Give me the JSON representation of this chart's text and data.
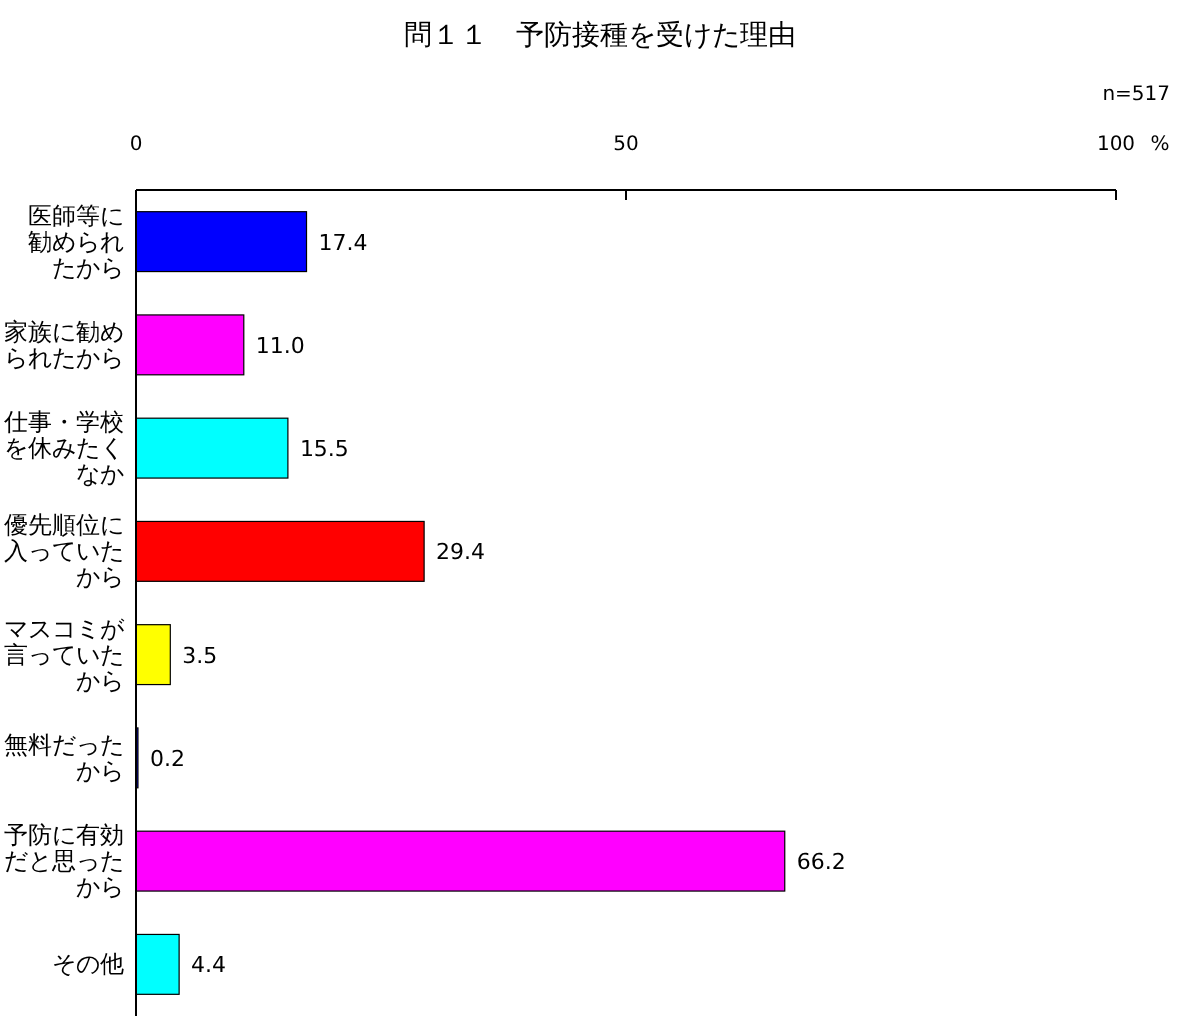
{
  "chart_data": {
    "type": "bar",
    "orientation": "horizontal",
    "title": "問１１　予防接種を受けた理由",
    "annotations": [
      "n=517"
    ],
    "xlabel": "%",
    "categories": [
      "医師等に勧められたから",
      "家族に勧められたから",
      "仕事・学校を休みたくなか",
      "優先順位に入っていたから",
      "マスコミが言っていたから",
      "無料だったから",
      "予防に有効だと思ったから",
      "その他"
    ],
    "values": [
      17.4,
      11.0,
      15.5,
      29.4,
      3.5,
      0.2,
      66.2,
      4.4
    ],
    "value_labels": [
      "17.4",
      "11.0",
      "15.5",
      "29.4",
      "3.5",
      "0.2",
      "66.2",
      "4.4"
    ],
    "colors": [
      "#0000ff",
      "#ff00ff",
      "#00ffff",
      "#ff0000",
      "#ffff00",
      "#0000ff",
      "#ff00ff",
      "#00ffff"
    ],
    "xlim": [
      0,
      100
    ],
    "xticks": [
      0,
      50,
      100
    ],
    "grid": false
  }
}
